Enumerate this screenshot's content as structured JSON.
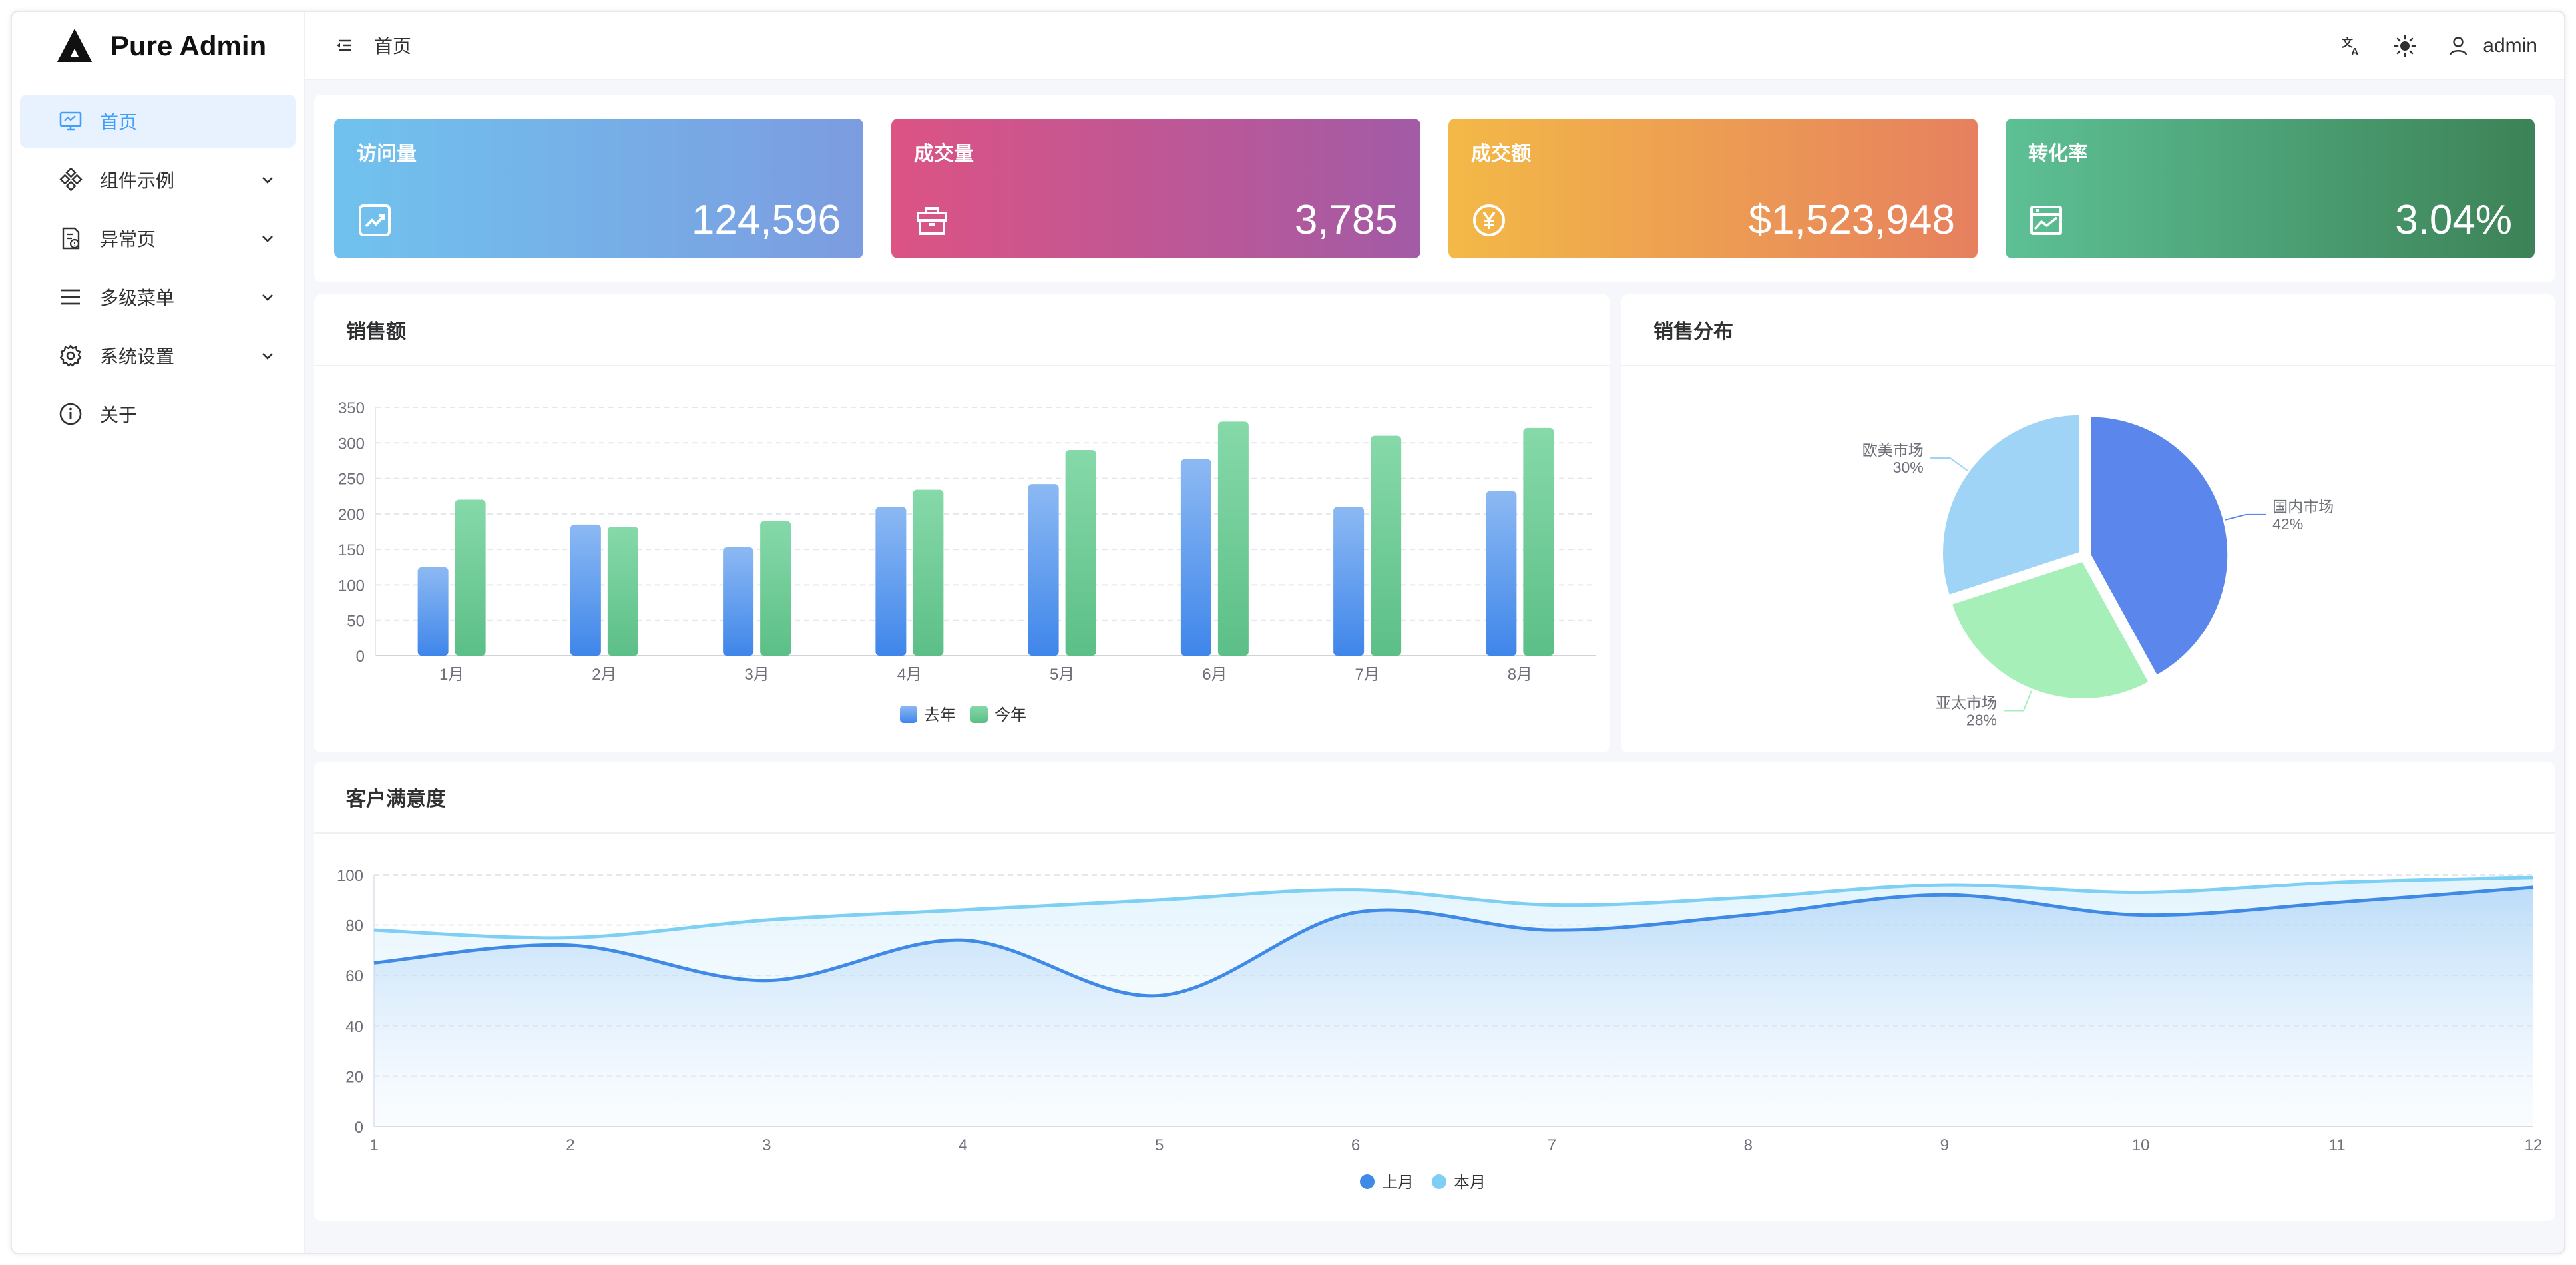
{
  "app": {
    "name": "Pure Admin"
  },
  "sidebar": {
    "items": [
      {
        "label": "首页",
        "icon": "monitor-icon",
        "active": true,
        "expandable": false
      },
      {
        "label": "组件示例",
        "icon": "components-icon",
        "active": false,
        "expandable": true
      },
      {
        "label": "异常页",
        "icon": "error-page-icon",
        "active": false,
        "expandable": true
      },
      {
        "label": "多级菜单",
        "icon": "menu-lines-icon",
        "active": false,
        "expandable": true
      },
      {
        "label": "系统设置",
        "icon": "gear-icon",
        "active": false,
        "expandable": true
      },
      {
        "label": "关于",
        "icon": "info-icon",
        "active": false,
        "expandable": false
      }
    ]
  },
  "header": {
    "breadcrumb": "首页",
    "user": "admin",
    "icons": [
      "menu-fold-icon",
      "translate-icon",
      "theme-sun-icon",
      "user-icon"
    ]
  },
  "stats": [
    {
      "title": "访问量",
      "value": "124,596",
      "icon": "trend-chart-icon",
      "colors": [
        "#70c2ee",
        "#7c9ce0"
      ]
    },
    {
      "title": "成交量",
      "value": "3,785",
      "icon": "shopping-bag-icon",
      "colors": [
        "#dc5384",
        "#a25ba6"
      ]
    },
    {
      "title": "成交额",
      "value": "$1,523,948",
      "icon": "yen-coin-icon",
      "colors": [
        "#f3b947",
        "#e6805f"
      ]
    },
    {
      "title": "转化率",
      "value": "3.04%",
      "icon": "picture-chart-icon",
      "colors": [
        "#5dc095",
        "#3d8257"
      ]
    }
  ],
  "cards": {
    "sales_title": "销售额",
    "distribution_title": "销售分布",
    "satisfaction_title": "客户满意度"
  },
  "chart_data": [
    {
      "type": "bar",
      "categories": [
        "1月",
        "2月",
        "3月",
        "4月",
        "5月",
        "6月",
        "7月",
        "8月"
      ],
      "series": [
        {
          "name": "去年",
          "values": [
            125,
            185,
            153,
            210,
            242,
            277,
            210,
            232
          ],
          "color": "#5b9bf0"
        },
        {
          "name": "今年",
          "values": [
            220,
            182,
            190,
            234,
            290,
            330,
            310,
            321
          ],
          "color": "#6fcb94"
        }
      ],
      "ylim": [
        0,
        350
      ],
      "yticks": [
        0,
        50,
        100,
        150,
        200,
        250,
        300,
        350
      ],
      "grid": true,
      "legend": "bottom"
    },
    {
      "type": "pie",
      "slices": [
        {
          "name": "国内市场",
          "value": 42,
          "label": "42%",
          "color": "#5b87ec"
        },
        {
          "name": "亚太市场",
          "value": 28,
          "label": "28%",
          "color": "#a6efb8"
        },
        {
          "name": "欧美市场",
          "value": 30,
          "label": "30%",
          "color": "#9fd4f7"
        }
      ]
    },
    {
      "type": "area",
      "x": [
        1,
        2,
        3,
        4,
        5,
        6,
        7,
        8,
        9,
        10,
        11,
        12
      ],
      "series": [
        {
          "name": "上月",
          "values": [
            65,
            72,
            58,
            74,
            52,
            85,
            78,
            84,
            92,
            84,
            89,
            95
          ],
          "color": "#3f8ae7"
        },
        {
          "name": "本月",
          "values": [
            78,
            75,
            82,
            86,
            90,
            94,
            88,
            91,
            96,
            93,
            97,
            99
          ],
          "color": "#7dd0f3"
        }
      ],
      "ylim": [
        0,
        100
      ],
      "yticks": [
        0,
        20,
        40,
        60,
        80,
        100
      ],
      "grid": true,
      "legend": "bottom"
    }
  ]
}
